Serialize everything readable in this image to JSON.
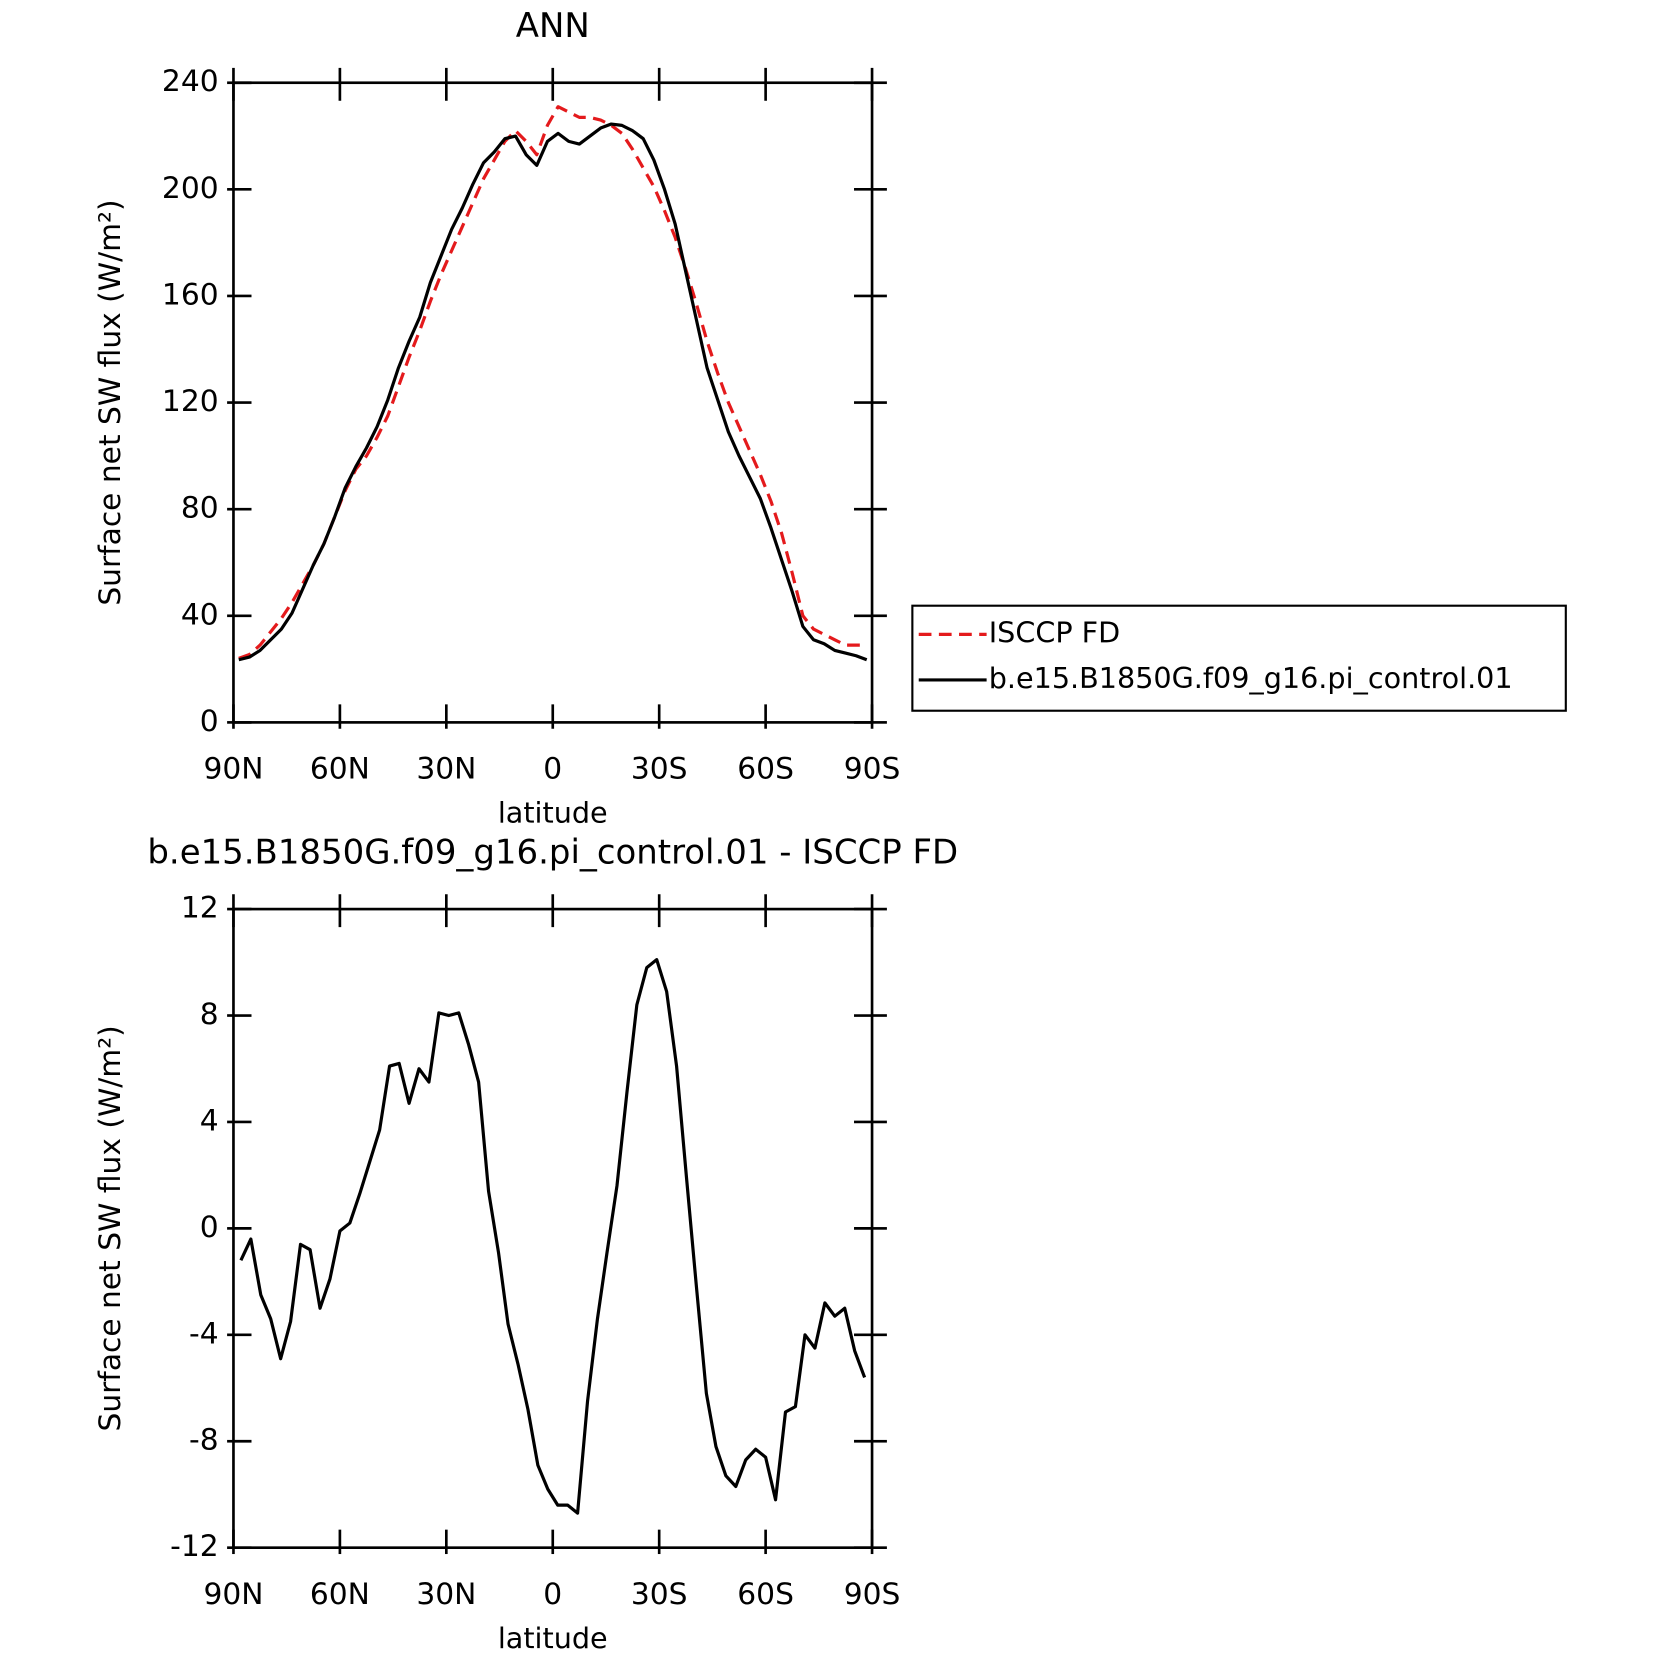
{
  "chart_data": [
    {
      "type": "line",
      "title": "ANN",
      "xlabel": "latitude",
      "ylabel": "Surface net SW flux (W/m²)",
      "x": [
        88.5,
        85.5,
        82.5,
        79.5,
        76.5,
        73.5,
        70.5,
        67.5,
        64.5,
        61.5,
        58.5,
        55.5,
        52.5,
        49.5,
        46.5,
        43.5,
        40.5,
        37.5,
        34.5,
        31.5,
        28.5,
        25.5,
        22.5,
        19.5,
        16.5,
        13.5,
        10.5,
        7.5,
        4.5,
        1.5,
        -1.5,
        -4.5,
        -7.5,
        -10.5,
        -13.5,
        -16.5,
        -19.5,
        -22.5,
        -25.5,
        -28.5,
        -31.5,
        -34.5,
        -37.5,
        -40.5,
        -43.5,
        -46.5,
        -49.5,
        -52.5,
        -55.5,
        -58.5,
        -61.5,
        -64.5,
        -67.5,
        -70.5,
        -73.5,
        -76.5,
        -79.5,
        -82.5,
        -85.5,
        -88.5
      ],
      "series": [
        {
          "name": "ISCCP FD",
          "color": "#e41a1c",
          "linestyle": "dashed",
          "values": [
            24,
            25.5,
            29,
            34,
            39,
            45,
            52,
            59,
            67,
            77,
            87,
            95,
            100,
            107,
            115,
            126,
            137,
            147,
            158,
            168,
            177,
            186,
            195,
            204,
            211,
            218,
            222,
            218,
            213,
            224,
            231,
            229,
            227,
            227,
            226,
            224,
            221,
            215,
            208,
            201,
            192,
            182,
            170,
            157,
            143,
            131,
            120,
            111,
            102,
            93,
            83,
            71,
            56,
            40,
            35,
            33,
            31,
            29,
            29,
            29
          ]
        },
        {
          "name": "b.e15.B1850G.f09_g16.pi_control.01",
          "color": "#000000",
          "linestyle": "solid",
          "values": [
            23.5,
            24.5,
            27,
            31,
            35,
            41,
            50,
            59,
            67,
            77,
            88,
            96,
            103,
            111,
            121,
            133,
            143,
            152,
            165,
            175,
            185,
            193,
            202,
            210,
            214,
            219,
            220,
            213,
            209,
            218,
            221,
            218,
            217,
            220,
            223,
            224.5,
            224,
            222,
            219,
            211,
            200,
            187,
            169,
            151,
            133,
            121,
            109,
            100,
            92,
            84,
            73,
            61,
            49,
            36,
            31,
            29.5,
            27,
            26,
            25,
            23.5
          ]
        }
      ],
      "xlim": [
        90,
        -90
      ],
      "ylim": [
        0,
        240
      ],
      "xticks": [
        {
          "value": 90,
          "label": "90N"
        },
        {
          "value": 60,
          "label": "60N"
        },
        {
          "value": 30,
          "label": "30N"
        },
        0,
        {
          "value": -30,
          "label": "30S"
        },
        {
          "value": -60,
          "label": "60S"
        },
        {
          "value": -90,
          "label": "90S"
        }
      ],
      "yticks": [
        0,
        40,
        80,
        120,
        160,
        200,
        240
      ],
      "legend": "outside right"
    },
    {
      "type": "line",
      "title": "b.e15.B1850G.f09_g16.pi_control.01 - ISCCP FD",
      "xlabel": "latitude",
      "ylabel": "Surface net SW flux (W/m²)",
      "x": [
        87.9,
        85.1,
        82.3,
        79.5,
        76.7,
        73.9,
        71.1,
        68.4,
        65.6,
        62.8,
        60.0,
        57.2,
        54.4,
        51.6,
        48.8,
        46.0,
        43.3,
        40.5,
        37.7,
        34.9,
        32.1,
        29.3,
        26.5,
        23.7,
        20.9,
        18.1,
        15.3,
        12.6,
        9.8,
        7.0,
        4.2,
        1.4,
        -1.4,
        -4.2,
        -7.0,
        -9.8,
        -12.6,
        -15.3,
        -18.1,
        -20.9,
        -23.7,
        -26.5,
        -29.3,
        -32.1,
        -34.9,
        -37.7,
        -40.5,
        -43.3,
        -46.0,
        -48.8,
        -51.6,
        -54.4,
        -57.2,
        -60.0,
        -62.8,
        -65.6,
        -68.4,
        -71.1,
        -73.9,
        -76.7,
        -79.5,
        -82.3,
        -85.1,
        -87.9
      ],
      "series": [
        {
          "color": "#000000",
          "linestyle": "solid",
          "values": [
            -1.2,
            -0.4,
            -2.5,
            -3.4,
            -4.9,
            -3.5,
            -0.6,
            -0.8,
            -3.0,
            -1.9,
            -0.1,
            0.2,
            1.3,
            2.5,
            3.7,
            6.1,
            6.2,
            4.7,
            6.0,
            5.5,
            8.1,
            8.0,
            8.1,
            6.9,
            5.5,
            1.4,
            -0.9,
            -3.6,
            -5.1,
            -6.8,
            -8.9,
            -9.8,
            -10.4,
            -10.4,
            -10.7,
            -6.5,
            -3.4,
            -0.9,
            1.6,
            5.1,
            8.4,
            9.8,
            10.1,
            8.9,
            6.1,
            1.9,
            -2.2,
            -6.2,
            -8.2,
            -9.3,
            -9.7,
            -8.7,
            -8.3,
            -8.6,
            -10.2,
            -6.9,
            -6.7,
            -4.0,
            -4.5,
            -2.8,
            -3.3,
            -3.0,
            -4.6,
            -5.6
          ]
        }
      ],
      "xlim": [
        90,
        -90
      ],
      "ylim": [
        -12,
        12
      ],
      "xticks": [
        {
          "value": 90,
          "label": "90N"
        },
        {
          "value": 60,
          "label": "60N"
        },
        {
          "value": 30,
          "label": "30N"
        },
        0,
        {
          "value": -30,
          "label": "30S"
        },
        {
          "value": -60,
          "label": "60S"
        },
        {
          "value": -90,
          "label": "90S"
        }
      ],
      "yticks": [
        -12,
        -8,
        -4,
        0,
        4,
        8,
        12
      ]
    }
  ]
}
